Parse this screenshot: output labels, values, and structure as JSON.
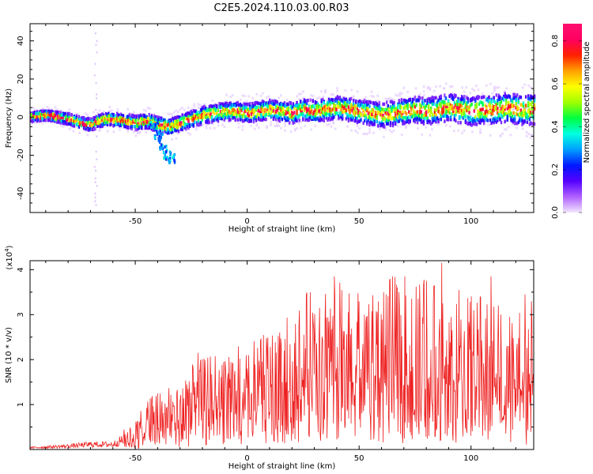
{
  "figure": {
    "title": "C2E5.2024.110.03.00.R03"
  },
  "chart_data": [
    {
      "type": "heatmap",
      "title": "",
      "xlabel": "Height of straight line (km)",
      "ylabel": "Frequency (Hz)",
      "xlim": [
        -97,
        128
      ],
      "ylim": [
        -50,
        49
      ],
      "xticks": [
        -50,
        0,
        50,
        100
      ],
      "yticks": [
        -40,
        -20,
        0,
        20,
        40
      ],
      "xtick_labels": [
        "-50",
        "0",
        "50",
        "100"
      ],
      "ytick_labels": [
        "-40",
        "-20",
        "0",
        "20",
        "40"
      ],
      "colorbar": {
        "label": "Normalized spectral amplitude",
        "range": [
          0,
          0.88
        ],
        "ticks": [
          0.0,
          0.2,
          0.4,
          0.6,
          0.8
        ],
        "tick_labels": [
          "0.0",
          "0.2",
          "0.4",
          "0.6",
          "0.8"
        ],
        "colormap": [
          "#f2e6ff",
          "#b060ff",
          "#5500ff",
          "#0018ff",
          "#00a0ff",
          "#00ffe0",
          "#00ff40",
          "#a0ff00",
          "#ffff00",
          "#ffa000",
          "#ff2000",
          "#ff0060",
          "#ff1070"
        ]
      },
      "ridge": [
        [
          -97,
          0
        ],
        [
          -90,
          1
        ],
        [
          -85,
          0
        ],
        [
          -80,
          -1
        ],
        [
          -75,
          -3
        ],
        [
          -70,
          -4
        ],
        [
          -67,
          -2
        ],
        [
          -62,
          -1
        ],
        [
          -55,
          -2
        ],
        [
          -50,
          -3
        ],
        [
          -45,
          -2
        ],
        [
          -40,
          -4
        ],
        [
          -35,
          -5
        ],
        [
          -30,
          -3
        ],
        [
          -25,
          -1
        ],
        [
          -20,
          1
        ],
        [
          -15,
          2
        ],
        [
          -10,
          3
        ],
        [
          -5,
          3
        ],
        [
          0,
          2
        ],
        [
          5,
          3
        ],
        [
          10,
          4
        ],
        [
          15,
          3
        ],
        [
          20,
          2
        ],
        [
          25,
          4
        ],
        [
          30,
          3
        ],
        [
          35,
          4
        ],
        [
          40,
          5
        ],
        [
          45,
          4
        ],
        [
          50,
          3
        ],
        [
          55,
          2
        ],
        [
          60,
          1
        ],
        [
          65,
          2
        ],
        [
          70,
          3
        ],
        [
          75,
          4
        ],
        [
          80,
          3
        ],
        [
          85,
          4
        ],
        [
          90,
          5
        ],
        [
          95,
          4
        ],
        [
          100,
          3
        ],
        [
          105,
          4
        ],
        [
          110,
          4
        ],
        [
          115,
          5
        ],
        [
          120,
          4
        ],
        [
          128,
          4
        ]
      ],
      "branch": [
        [
          -42,
          -5
        ],
        [
          -40,
          -10
        ],
        [
          -38,
          -15
        ],
        [
          -36,
          -20
        ],
        [
          -34,
          -22
        ]
      ]
    },
    {
      "type": "line",
      "title": "",
      "xlabel": "Height of straight line (km)",
      "ylabel": "SNR (10 * v/v)",
      "scale_label": "(x10",
      "scale_exponent": "4",
      "scale_suffix": ")",
      "xlim": [
        -97,
        128
      ],
      "ylim": [
        0,
        4.2
      ],
      "xticks": [
        -50,
        0,
        50,
        100
      ],
      "yticks": [
        1,
        2,
        3,
        4
      ],
      "xtick_labels": [
        "-50",
        "0",
        "50",
        "100"
      ],
      "ytick_labels": [
        "1",
        "2",
        "3",
        "4"
      ],
      "series": [
        {
          "color": "#ee2222",
          "envelope": [
            [
              -97,
              0.05
            ],
            [
              -80,
              0.1
            ],
            [
              -70,
              0.15
            ],
            [
              -60,
              0.15
            ],
            [
              -55,
              0.3
            ],
            [
              -50,
              0.45
            ],
            [
              -45,
              0.75
            ],
            [
              -40,
              0.85
            ],
            [
              -35,
              0.95
            ],
            [
              -30,
              1.1
            ],
            [
              -25,
              1.25
            ],
            [
              -20,
              1.35
            ],
            [
              -15,
              1.45
            ],
            [
              -10,
              1.5
            ],
            [
              -5,
              1.55
            ],
            [
              0,
              1.5
            ],
            [
              5,
              1.7
            ],
            [
              10,
              1.75
            ],
            [
              15,
              1.85
            ],
            [
              20,
              2.1
            ],
            [
              25,
              2.3
            ],
            [
              30,
              2.4
            ],
            [
              35,
              2.5
            ],
            [
              40,
              2.5
            ],
            [
              50,
              2.5
            ],
            [
              60,
              2.55
            ],
            [
              70,
              2.6
            ],
            [
              80,
              2.55
            ],
            [
              90,
              2.45
            ],
            [
              100,
              2.3
            ],
            [
              110,
              2.3
            ],
            [
              120,
              2.2
            ],
            [
              128,
              2.0
            ]
          ],
          "peaks": [
            [
              -22,
              2.15
            ],
            [
              39,
              3.85
            ],
            [
              62,
              3.45
            ],
            [
              87,
              4.15
            ],
            [
              109,
              3.85
            ],
            [
              124,
              3.45
            ],
            [
              127,
              3.3
            ]
          ]
        }
      ]
    }
  ]
}
